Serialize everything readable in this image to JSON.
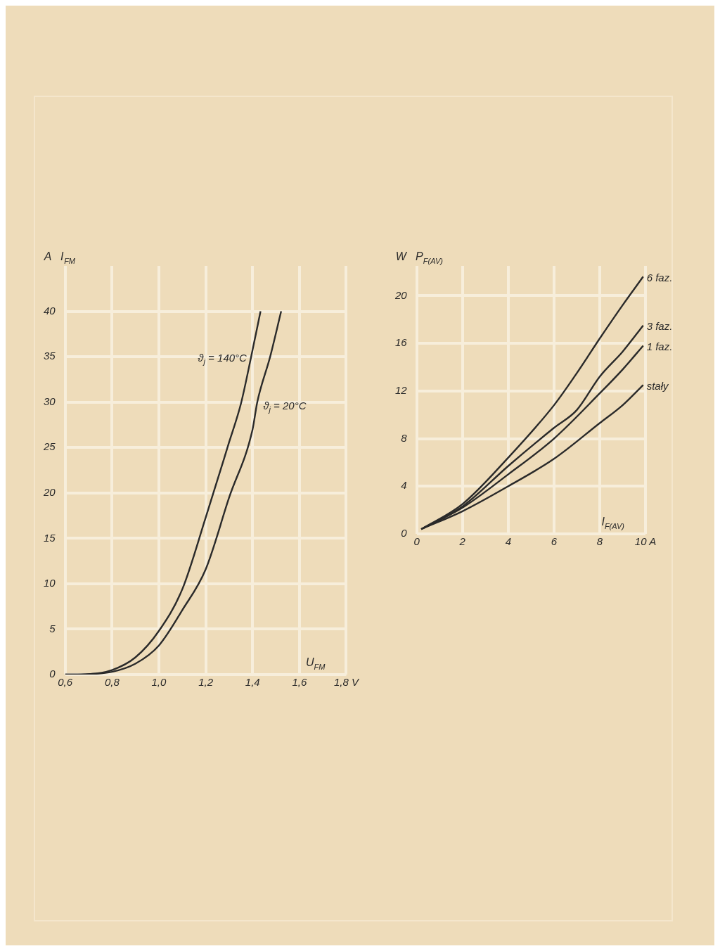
{
  "chart_data": [
    {
      "type": "line",
      "xlabel": "U$_{FM}$",
      "ylabel": "A   I$_{FM}$",
      "xlim": [
        0.6,
        1.8
      ],
      "ylim": [
        0,
        45
      ],
      "xticks": [
        {
          "value": 0.6,
          "label": "0,6"
        },
        {
          "value": 0.8,
          "label": "0,8"
        },
        {
          "value": 1.0,
          "label": "1,0"
        },
        {
          "value": 1.2,
          "label": "1,2"
        },
        {
          "value": 1.4,
          "label": "1,4"
        },
        {
          "value": 1.6,
          "label": "1,6"
        },
        {
          "value": 1.8,
          "label": "1,8 V"
        }
      ],
      "yticks": [
        0,
        5,
        10,
        15,
        20,
        25,
        30,
        35,
        40
      ],
      "grid": true,
      "series": [
        {
          "name": "ϑ$_{j}$ = 140°C",
          "color": "#2a2a2a",
          "x": [
            0.6,
            0.7,
            0.8,
            0.9,
            1.0,
            1.1,
            1.2,
            1.3,
            1.35,
            1.394,
            1.434
          ],
          "values": [
            0,
            0.05,
            0.5,
            1.9,
            4.8,
            9.4,
            17.3,
            25.6,
            29.8,
            35,
            40
          ]
        },
        {
          "name": "ϑ$_{j}$ = 20°C",
          "color": "#2a2a2a",
          "x": [
            0.6,
            0.7,
            0.8,
            0.9,
            1.0,
            1.1,
            1.2,
            1.3,
            1.4,
            1.42,
            1.475,
            1.522
          ],
          "values": [
            0,
            0.05,
            0.3,
            1.2,
            3.2,
            7.1,
            11.6,
            19.5,
            27,
            30,
            35,
            40
          ]
        }
      ]
    },
    {
      "type": "line",
      "xlabel": "I$_{F(AV)}$",
      "ylabel": "W   P$_{F(AV)}$",
      "xlim": [
        0,
        10
      ],
      "ylim": [
        0,
        22.5
      ],
      "xticks": [
        0,
        2,
        4,
        6,
        8,
        {
          "value": 10,
          "label": "10 A"
        }
      ],
      "yticks": [
        0,
        4,
        8,
        12,
        16,
        20
      ],
      "grid": true,
      "series": [
        {
          "name": "6 faz.",
          "color": "#2a2a2a",
          "x": [
            0.2,
            2,
            4,
            6,
            7,
            8,
            9,
            9.9
          ],
          "values": [
            0.4,
            2.5,
            6.4,
            10.8,
            13.5,
            16.4,
            19.2,
            21.6
          ]
        },
        {
          "name": "3 faz.",
          "color": "#2a2a2a",
          "x": [
            0.2,
            2,
            4,
            6,
            7,
            8,
            9,
            9.9
          ],
          "values": [
            0.4,
            2.3,
            5.7,
            8.9,
            10.4,
            13.2,
            15.3,
            17.5
          ]
        },
        {
          "name": "1 faz.",
          "color": "#2a2a2a",
          "x": [
            0.2,
            2,
            4,
            6,
            8,
            9,
            9.9
          ],
          "values": [
            0.4,
            2.2,
            5.0,
            8.0,
            11.8,
            13.8,
            15.8
          ]
        },
        {
          "name": "stały",
          "color": "#2a2a2a",
          "x": [
            0.2,
            2,
            4,
            6,
            8,
            9,
            9.9
          ],
          "values": [
            0.4,
            1.9,
            4.0,
            6.3,
            9.3,
            10.8,
            12.5
          ]
        }
      ]
    }
  ]
}
